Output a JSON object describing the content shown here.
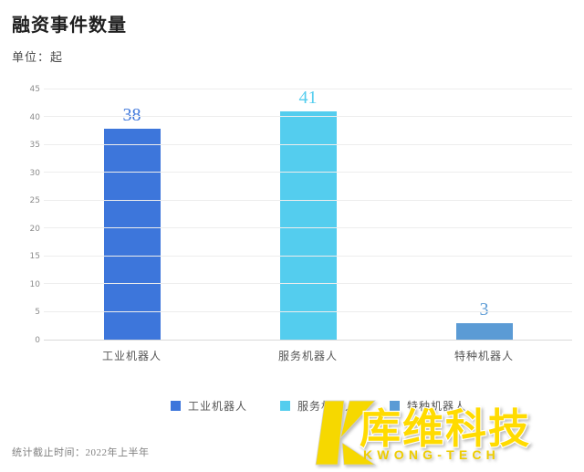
{
  "header": {
    "title": "融资事件数量",
    "unit_label": "单位：起"
  },
  "chart_data": {
    "type": "bar",
    "title": "融资事件数量",
    "ylabel": "单位：起",
    "categories": [
      "工业机器人",
      "服务机器人",
      "特种机器人"
    ],
    "values": [
      38,
      41,
      3
    ],
    "colors": [
      "#3d76db",
      "#54cdee",
      "#5b9bd5"
    ],
    "ylim": [
      0,
      45
    ],
    "ytick_step": 5,
    "grid": true,
    "legend_position": "bottom",
    "value_labels": true
  },
  "legend": {
    "items": [
      {
        "label": "工业机器人",
        "color": "#3d76db"
      },
      {
        "label": "服务机器人",
        "color": "#54cdee"
      },
      {
        "label": "特种机器人",
        "color": "#5b9bd5"
      }
    ]
  },
  "footer": {
    "note": "统计截止时间：2022年上半年"
  },
  "watermark": {
    "brand_cn": "库维科技",
    "brand_en": "KWONG-TECH",
    "color": "#ffdb00"
  }
}
